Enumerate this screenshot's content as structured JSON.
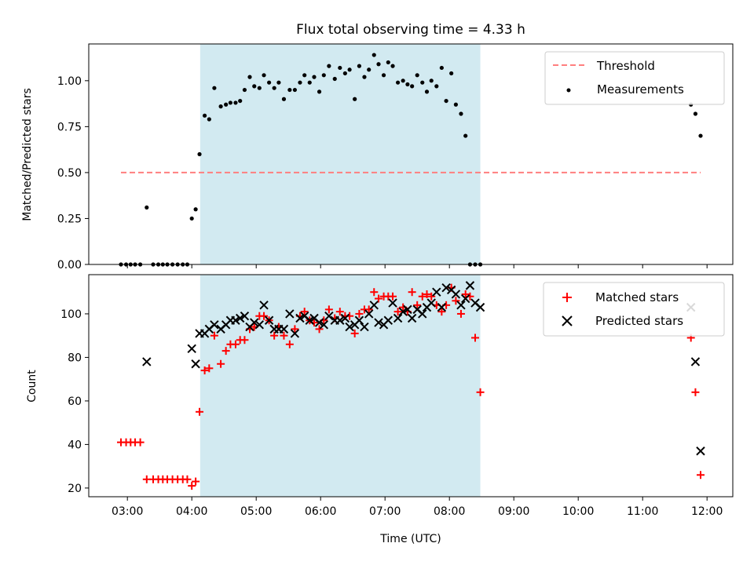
{
  "chart_data": [
    {
      "type": "scatter",
      "title": "Flux total observing time = 4.33 h",
      "xlabel": "",
      "ylabel": "Matched/Predicted stars",
      "xlim": [
        2.4,
        12.4
      ],
      "ylim": [
        0.0,
        1.2
      ],
      "yticks": [
        0.0,
        0.25,
        0.5,
        0.75,
        1.0
      ],
      "ytick_labels": [
        "0.00",
        "0.25",
        "0.50",
        "0.75",
        "1.00"
      ],
      "shaded_interval": [
        4.13,
        8.48
      ],
      "shade_color": "#add8e6",
      "legend_position": "top-right",
      "series": [
        {
          "name": "Threshold",
          "style": "dashed-line",
          "color": "#ff7f7f",
          "x": [
            2.9,
            11.9
          ],
          "y": [
            0.5,
            0.5
          ]
        },
        {
          "name": "Measurements",
          "style": "dot",
          "color": "#000000",
          "x": [
            2.9,
            2.98,
            3.05,
            3.12,
            3.2,
            3.3,
            3.4,
            3.48,
            3.55,
            3.62,
            3.7,
            3.78,
            3.86,
            3.93,
            4.0,
            4.06,
            4.12,
            4.2,
            4.27,
            4.35,
            4.45,
            4.53,
            4.6,
            4.68,
            4.75,
            4.82,
            4.9,
            4.97,
            5.05,
            5.12,
            5.2,
            5.28,
            5.35,
            5.43,
            5.52,
            5.6,
            5.68,
            5.75,
            5.83,
            5.9,
            5.98,
            6.05,
            6.13,
            6.22,
            6.3,
            6.38,
            6.45,
            6.53,
            6.6,
            6.68,
            6.75,
            6.83,
            6.9,
            6.98,
            7.05,
            7.12,
            7.2,
            7.28,
            7.35,
            7.42,
            7.5,
            7.58,
            7.65,
            7.72,
            7.8,
            7.88,
            7.95,
            8.03,
            8.1,
            8.18,
            8.25,
            8.32,
            8.4,
            8.48,
            11.75,
            11.82,
            11.9
          ],
          "y": [
            0.0,
            0.0,
            0.0,
            0.0,
            0.0,
            0.31,
            0.0,
            0.0,
            0.0,
            0.0,
            0.0,
            0.0,
            0.0,
            0.0,
            0.25,
            0.3,
            0.6,
            0.81,
            0.79,
            0.96,
            0.86,
            0.87,
            0.88,
            0.88,
            0.89,
            0.95,
            1.02,
            0.97,
            0.96,
            1.03,
            0.99,
            0.96,
            0.99,
            0.9,
            0.95,
            0.95,
            0.99,
            1.03,
            0.99,
            1.02,
            0.94,
            1.03,
            1.08,
            1.01,
            1.07,
            1.04,
            1.06,
            0.9,
            1.08,
            1.02,
            1.06,
            1.14,
            1.09,
            1.03,
            1.1,
            1.08,
            0.99,
            1.0,
            0.98,
            0.97,
            1.03,
            0.99,
            0.94,
            1.0,
            0.97,
            1.07,
            0.89,
            1.04,
            0.87,
            0.82,
            0.7,
            0.0,
            0.0,
            0.0,
            0.87,
            0.82,
            0.7
          ]
        }
      ]
    },
    {
      "type": "scatter",
      "title": "",
      "xlabel": "Time (UTC)",
      "ylabel": "Count",
      "xlim": [
        2.4,
        12.4
      ],
      "ylim": [
        16,
        118
      ],
      "yticks": [
        20,
        40,
        60,
        80,
        100
      ],
      "ytick_labels": [
        "20",
        "40",
        "60",
        "80",
        "100"
      ],
      "xticks": [
        3,
        4,
        5,
        6,
        7,
        8,
        9,
        10,
        11,
        12
      ],
      "xtick_labels": [
        "03:00",
        "04:00",
        "05:00",
        "06:00",
        "07:00",
        "08:00",
        "09:00",
        "10:00",
        "11:00",
        "12:00"
      ],
      "shaded_interval": [
        4.13,
        8.48
      ],
      "shade_color": "#add8e6",
      "legend_position": "top-right",
      "series": [
        {
          "name": "Matched stars",
          "style": "plus",
          "color": "#ff0000",
          "x": [
            2.9,
            2.98,
            3.05,
            3.12,
            3.2,
            3.3,
            3.4,
            3.48,
            3.55,
            3.62,
            3.7,
            3.78,
            3.86,
            3.93,
            4.0,
            4.06,
            4.12,
            4.2,
            4.27,
            4.35,
            4.45,
            4.53,
            4.6,
            4.68,
            4.75,
            4.82,
            4.9,
            4.97,
            5.05,
            5.12,
            5.2,
            5.28,
            5.35,
            5.43,
            5.52,
            5.6,
            5.68,
            5.75,
            5.83,
            5.9,
            5.98,
            6.05,
            6.13,
            6.22,
            6.3,
            6.38,
            6.45,
            6.53,
            6.6,
            6.68,
            6.75,
            6.83,
            6.9,
            6.98,
            7.05,
            7.12,
            7.2,
            7.28,
            7.35,
            7.42,
            7.5,
            7.58,
            7.65,
            7.72,
            7.8,
            7.88,
            7.95,
            8.03,
            8.1,
            8.18,
            8.25,
            8.32,
            8.4,
            8.48,
            11.75,
            11.82,
            11.9
          ],
          "y": [
            41,
            41,
            41,
            41,
            41,
            24,
            24,
            24,
            24,
            24,
            24,
            24,
            24,
            24,
            21,
            23,
            55,
            74,
            75,
            90,
            77,
            83,
            86,
            86,
            88,
            88,
            93,
            94,
            99,
            99,
            97,
            90,
            94,
            90,
            86,
            93,
            99,
            101,
            97,
            96,
            93,
            97,
            102,
            98,
            101,
            99,
            99,
            91,
            100,
            102,
            102,
            110,
            107,
            108,
            108,
            108,
            101,
            103,
            101,
            110,
            104,
            108,
            109,
            108,
            104,
            101,
            104,
            112,
            106,
            100,
            109,
            108,
            89,
            64,
            89,
            64,
            26
          ],
          "x_override_note": ""
        },
        {
          "name": "Predicted stars",
          "style": "x",
          "color": "#000000",
          "x": [
            3.3,
            4.0,
            4.06,
            4.12,
            4.2,
            4.27,
            4.35,
            4.45,
            4.53,
            4.6,
            4.68,
            4.75,
            4.82,
            4.9,
            4.97,
            5.05,
            5.12,
            5.2,
            5.28,
            5.35,
            5.43,
            5.52,
            5.6,
            5.68,
            5.75,
            5.83,
            5.9,
            5.98,
            6.05,
            6.13,
            6.22,
            6.3,
            6.38,
            6.45,
            6.53,
            6.6,
            6.68,
            6.75,
            6.83,
            6.9,
            6.98,
            7.05,
            7.12,
            7.2,
            7.28,
            7.35,
            7.42,
            7.5,
            7.58,
            7.65,
            7.72,
            7.8,
            7.88,
            7.95,
            8.03,
            8.1,
            8.18,
            8.25,
            8.32,
            8.4,
            8.48,
            11.75,
            11.82,
            11.9
          ],
          "y": [
            78,
            84,
            77,
            91,
            91,
            93,
            95,
            93,
            95,
            97,
            97,
            98,
            99,
            94,
            96,
            95,
            104,
            97,
            93,
            93,
            93,
            100,
            91,
            98,
            99,
            97,
            98,
            96,
            95,
            99,
            97,
            97,
            98,
            94,
            95,
            97,
            94,
            100,
            104,
            96,
            95,
            97,
            105,
            98,
            101,
            102,
            98,
            102,
            100,
            103,
            105,
            110,
            103,
            112,
            111,
            109,
            104,
            107,
            113,
            105,
            103,
            103,
            78,
            37
          ]
        }
      ]
    }
  ],
  "legend_top": [
    "Threshold",
    "Measurements"
  ],
  "legend_bottom": [
    "Matched stars",
    "Predicted stars"
  ]
}
